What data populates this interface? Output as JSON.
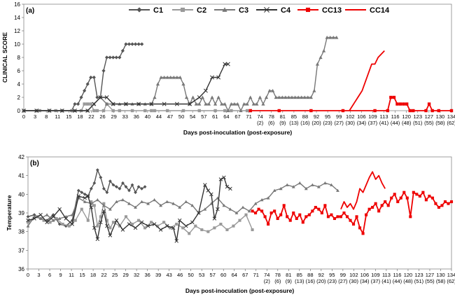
{
  "chart_data": [
    {
      "type": "line",
      "panel_label": "(a)",
      "title": "",
      "xlabel": "Days post-inoculation (post-exposure)",
      "ylabel": "CLINICAL SCORE",
      "ylim": [
        0,
        16
      ],
      "yticks": [
        0,
        2,
        4,
        6,
        8,
        10,
        12,
        14,
        16
      ],
      "xlim": [
        0,
        134
      ],
      "xticks": [
        "0",
        "3",
        "8",
        "11",
        "15",
        "18",
        "22",
        "26",
        "29",
        "33",
        "36",
        "40",
        "44",
        "47",
        "50",
        "54",
        "57",
        "61",
        "64",
        "67",
        "71",
        "74\n(2)",
        "78\n(6)",
        "81\n(9)",
        "85\n(13)",
        "88\n(16)",
        "92\n(20)",
        "95\n(23)",
        "99\n(27)",
        "102\n(30)",
        "106\n(34)",
        "109\n(37)",
        "113\n(41)",
        "116\n(44)",
        "120\n(48)",
        "123\n(51)",
        "127\n(55)",
        "130\n(58)",
        "134\n(62)"
      ],
      "grid": false,
      "legend": "top",
      "series": [
        {
          "name": "C1",
          "color": "#555555",
          "marker": "diamond",
          "x": [
            0,
            4,
            8,
            12,
            15,
            16,
            17,
            18,
            19,
            20,
            21,
            22,
            23,
            24,
            25,
            26,
            27,
            28,
            29,
            30,
            31,
            32,
            33,
            34,
            35,
            36,
            37
          ],
          "y": [
            0,
            0,
            0,
            0,
            0,
            1,
            1,
            2,
            3,
            4,
            5,
            5,
            2,
            2,
            6,
            8,
            8,
            8,
            8,
            8,
            9,
            10,
            10,
            10,
            10,
            10,
            10
          ]
        },
        {
          "name": "C2",
          "color": "#999999",
          "marker": "square",
          "x": [
            0,
            5,
            10,
            15,
            18,
            19,
            20,
            21,
            22,
            23,
            25,
            26,
            28,
            30,
            34,
            38,
            40,
            41,
            45,
            50,
            55,
            60,
            63,
            65,
            70,
            71
          ],
          "y": [
            0,
            0,
            0,
            0,
            0,
            1,
            1,
            1,
            0,
            0,
            0,
            1,
            0,
            0,
            0,
            0,
            0,
            0,
            0,
            0,
            0,
            0,
            0,
            0,
            0,
            0
          ]
        },
        {
          "name": "C3",
          "color": "#777777",
          "marker": "triangle",
          "x": [
            0,
            4,
            8,
            12,
            16,
            20,
            22,
            24,
            26,
            28,
            30,
            32,
            34,
            36,
            38,
            40,
            41,
            42,
            43,
            44,
            45,
            46,
            47,
            48,
            49,
            50,
            51,
            52,
            53,
            54,
            55,
            56,
            57,
            58,
            59,
            60,
            61,
            62,
            63,
            64,
            65,
            66,
            67,
            68,
            69,
            70,
            71,
            72,
            73,
            74,
            75,
            76,
            77,
            78,
            79,
            80,
            81,
            82,
            83,
            84,
            85,
            86,
            87,
            88,
            89,
            90,
            91,
            92,
            93,
            94,
            95,
            96,
            97,
            98
          ],
          "y": [
            0,
            0,
            0,
            0,
            0,
            0,
            1,
            2,
            1,
            1,
            1,
            1,
            1,
            1,
            1,
            1,
            2,
            4,
            5,
            5,
            5,
            5,
            5,
            5,
            5,
            4,
            2,
            1,
            2,
            1,
            1,
            2,
            1,
            1,
            2,
            1,
            2,
            1,
            1,
            0,
            1,
            1,
            1,
            0,
            1,
            1,
            2,
            1,
            1,
            2,
            1,
            2,
            3,
            3,
            2,
            2,
            2,
            2,
            2,
            2,
            2,
            2,
            2,
            2,
            2,
            2,
            3,
            7,
            8,
            9,
            11,
            11,
            11,
            11
          ]
        },
        {
          "name": "C4",
          "color": "#333333",
          "marker": "x",
          "x": [
            0,
            4,
            8,
            12,
            16,
            20,
            22,
            24,
            26,
            28,
            32,
            36,
            40,
            44,
            48,
            52,
            55,
            57,
            59,
            61,
            63,
            64
          ],
          "y": [
            0,
            0,
            0,
            0,
            0,
            0,
            1,
            2,
            2,
            1,
            1,
            1,
            1,
            1,
            1,
            1,
            2,
            3,
            5,
            5,
            7,
            7
          ]
        },
        {
          "name": "CC13",
          "color": "#ee0000",
          "marker": "square",
          "x": [
            71,
            80,
            90,
            100,
            110,
            114,
            115,
            116,
            117,
            118,
            119,
            120,
            121,
            122,
            126,
            127,
            128,
            130,
            134
          ],
          "y": [
            0,
            0,
            0,
            0,
            0,
            0,
            2,
            2,
            1,
            1,
            1,
            1,
            0,
            0,
            0,
            1,
            0,
            0,
            0
          ]
        },
        {
          "name": "CC14",
          "color": "#ee0000",
          "marker": "none",
          "x": [
            102,
            106,
            109,
            110,
            111,
            112,
            113
          ],
          "y": [
            0,
            3,
            7,
            7,
            8,
            8.5,
            9
          ]
        }
      ]
    },
    {
      "type": "line",
      "panel_label": "(b)",
      "title": "",
      "xlabel": "Days post-inoculation (post-exposure)",
      "ylabel": "Temperature",
      "ylim": [
        36,
        42
      ],
      "yticks": [
        36,
        37,
        38,
        39,
        40,
        41,
        42
      ],
      "xlim": [
        0,
        134
      ],
      "xticks": [
        "0",
        "3",
        "6",
        "9",
        "11",
        "15",
        "18",
        "22",
        "25",
        "29",
        "32",
        "36",
        "39",
        "43",
        "46",
        "50",
        "53",
        "57",
        "60",
        "64",
        "67",
        "71",
        "74\n(2)",
        "78\n(6)",
        "81\n(9)",
        "85\n(13)",
        "88\n(16)",
        "92\n(20)",
        "95\n(23)",
        "99\n(27)",
        "102\n(30)",
        "106\n(34)",
        "109\n(37)",
        "113\n(41)",
        "116\n(44)",
        "120\n(48)",
        "123\n(51)",
        "127\n(55)",
        "130\n(58)",
        "134\n(62)"
      ],
      "grid": false,
      "legend": "none",
      "series": [
        {
          "name": "C1",
          "color": "#555555",
          "marker": "diamond",
          "x": [
            0,
            2,
            4,
            6,
            8,
            10,
            12,
            14,
            16,
            17,
            18,
            19,
            20,
            21,
            22,
            23,
            24,
            25,
            26,
            27,
            28,
            29,
            30,
            31,
            32,
            33,
            34,
            35,
            36,
            37
          ],
          "y": [
            38.8,
            38.9,
            38.7,
            38.6,
            38.9,
            38.4,
            38.3,
            38.6,
            40.2,
            40.1,
            40,
            39.9,
            40.3,
            40.6,
            41.3,
            40.9,
            40.3,
            40.1,
            40.7,
            40.5,
            40.4,
            40.3,
            40.6,
            40.4,
            40.2,
            40.5,
            40.1,
            40.4,
            40.3,
            40.4
          ]
        },
        {
          "name": "C2",
          "color": "#999999",
          "marker": "square",
          "x": [
            0,
            3,
            5,
            7,
            9,
            11,
            13,
            15,
            17,
            19,
            20,
            21,
            22,
            23,
            24,
            25,
            26,
            27,
            29,
            31,
            33,
            35,
            37,
            39,
            41,
            43,
            45,
            47,
            49,
            51,
            53,
            55,
            57,
            59,
            61,
            63,
            65,
            67,
            69,
            71
          ],
          "y": [
            38.5,
            38.8,
            38.6,
            38.5,
            38.7,
            38.4,
            38.3,
            38.6,
            39.2,
            38.6,
            39.6,
            39.4,
            38.3,
            38.8,
            39.5,
            38.6,
            38.2,
            38.5,
            38.3,
            38.8,
            38.4,
            38.6,
            38.2,
            38.5,
            38.3,
            38.5,
            38.2,
            38.4,
            38.2,
            37.9,
            38.3,
            38.1,
            38,
            38.2,
            38.4,
            38.1,
            38.3,
            38.6,
            38.9,
            38.1
          ]
        },
        {
          "name": "C3",
          "color": "#777777",
          "marker": "triangle",
          "x": [
            0,
            2,
            4,
            6,
            8,
            10,
            12,
            14,
            16,
            18,
            20,
            22,
            24,
            26,
            28,
            30,
            32,
            34,
            36,
            38,
            40,
            42,
            44,
            46,
            48,
            50,
            52,
            54,
            56,
            58,
            60,
            62,
            64,
            66,
            68,
            70,
            72,
            74,
            76,
            78,
            80,
            82,
            84,
            86,
            88,
            90,
            92,
            94,
            96,
            98
          ],
          "y": [
            38.3,
            38.8,
            38.7,
            38.9,
            38.6,
            38.7,
            38.8,
            38.9,
            39.8,
            39.6,
            39.5,
            39.7,
            39.4,
            39.2,
            39.6,
            39.7,
            39.5,
            39.3,
            39.6,
            39.5,
            39.7,
            39.4,
            39.6,
            39.5,
            39.3,
            39.6,
            39.4,
            39,
            39.2,
            39.5,
            39.8,
            39.4,
            39.2,
            39,
            39.3,
            39.1,
            39.5,
            39.7,
            39.8,
            40.2,
            40.3,
            40.5,
            40.4,
            40.6,
            40.3,
            40.5,
            40.4,
            40.6,
            40.5,
            40.2
          ]
        },
        {
          "name": "C4",
          "color": "#333333",
          "marker": "x",
          "x": [
            0,
            2,
            4,
            6,
            8,
            10,
            12,
            14,
            16,
            18,
            19,
            20,
            21,
            22,
            23,
            24,
            25,
            26,
            28,
            30,
            32,
            34,
            36,
            38,
            40,
            42,
            44,
            46,
            47,
            48,
            50,
            52,
            54,
            56,
            57,
            58,
            59,
            60,
            61,
            62,
            63,
            64
          ],
          "y": [
            38.6,
            38.7,
            38.9,
            38.5,
            38.8,
            39.2,
            38.7,
            38.4,
            39.9,
            39.8,
            39.9,
            39.3,
            38.2,
            37.6,
            38.5,
            39.1,
            38.3,
            37.8,
            38.6,
            38.1,
            38.4,
            38.2,
            38.5,
            38.3,
            38.4,
            38.1,
            38.3,
            38.2,
            37.5,
            38.6,
            38.3,
            38.5,
            39,
            40.5,
            40.2,
            40,
            38.7,
            39.2,
            40.8,
            40.9,
            40.4,
            40.3
          ]
        },
        {
          "name": "CC13",
          "color": "#ee0000",
          "marker": "square",
          "x": [
            71,
            72,
            73,
            74,
            75,
            76,
            77,
            78,
            79,
            80,
            81,
            82,
            83,
            84,
            85,
            86,
            87,
            88,
            89,
            90,
            91,
            92,
            93,
            94,
            95,
            96,
            97,
            98,
            99,
            100,
            101,
            102,
            103,
            104,
            105,
            106,
            107,
            108,
            109,
            110,
            111,
            112,
            113,
            114,
            115,
            116,
            117,
            118,
            119,
            120,
            121,
            122,
            123,
            124,
            125,
            126,
            127,
            128,
            129,
            130,
            131,
            132,
            133,
            134
          ],
          "y": [
            39.1,
            39,
            39.2,
            39.1,
            38.8,
            38.4,
            39,
            39.1,
            38.7,
            38.9,
            39.4,
            38.8,
            38.6,
            39,
            38.7,
            38.9,
            38.5,
            38.8,
            38.9,
            39.1,
            39.3,
            39.2,
            39,
            39.4,
            38.8,
            38.9,
            38.7,
            38.8,
            38.8,
            39,
            38.8,
            38.6,
            38.4,
            38.8,
            38.2,
            37.9,
            38.9,
            39.2,
            39.3,
            39.5,
            39.1,
            39.4,
            39.6,
            39.4,
            39.8,
            40,
            39.6,
            39.8,
            40.1,
            39.8,
            38.8,
            40.1,
            40,
            39.9,
            40.1,
            39.7,
            39.9,
            39.8,
            39.5,
            39.3,
            39.4,
            39.6,
            39.5,
            39.6
          ]
        },
        {
          "name": "CC14",
          "color": "#ee0000",
          "marker": "none",
          "x": [
            99,
            100,
            101,
            102,
            103,
            104,
            105,
            106,
            107,
            108,
            109,
            110,
            111,
            112,
            113
          ],
          "y": [
            39.2,
            39.6,
            39.3,
            39.5,
            39.2,
            39.6,
            40.3,
            40.1,
            40.5,
            40.9,
            41.2,
            40.8,
            41,
            40.6,
            40.3
          ]
        }
      ]
    }
  ],
  "legend": {
    "items": [
      {
        "name": "C1",
        "color": "#555555",
        "marker": "diamond"
      },
      {
        "name": "C2",
        "color": "#999999",
        "marker": "square"
      },
      {
        "name": "C3",
        "color": "#777777",
        "marker": "triangle"
      },
      {
        "name": "C4",
        "color": "#333333",
        "marker": "x"
      },
      {
        "name": "CC13",
        "color": "#ee0000",
        "marker": "square"
      },
      {
        "name": "CC14",
        "color": "#ee0000",
        "marker": "none"
      }
    ]
  }
}
